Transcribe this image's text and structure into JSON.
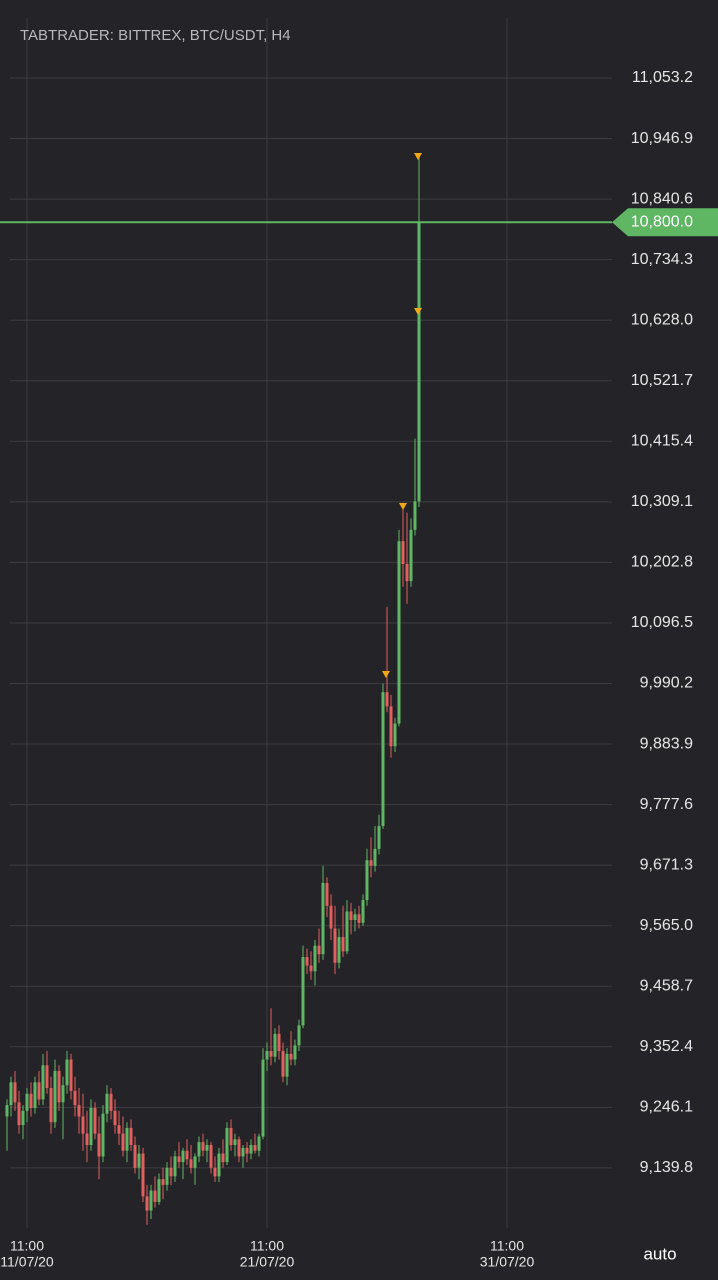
{
  "chart_data": {
    "type": "candlestick",
    "title": "TABTRADER: BITTREX, BTC/USDT, H4",
    "scale_mode": "auto",
    "up_color": "#5fb663",
    "down_color": "#e0615f",
    "grid": true,
    "x": [
      "10/07/20 15:00",
      "10/07/20 19:00",
      "10/07/20 23:00",
      "11/07/20 03:00",
      "11/07/20 07:00",
      "11/07/20 11:00",
      "11/07/20 15:00",
      "11/07/20 19:00",
      "11/07/20 23:00",
      "12/07/20 03:00",
      "12/07/20 07:00",
      "12/07/20 11:00",
      "12/07/20 15:00",
      "12/07/20 19:00",
      "12/07/20 23:00",
      "13/07/20 03:00",
      "13/07/20 07:00",
      "13/07/20 11:00",
      "13/07/20 15:00",
      "13/07/20 19:00",
      "13/07/20 23:00",
      "14/07/20 03:00",
      "14/07/20 07:00",
      "14/07/20 11:00",
      "14/07/20 15:00",
      "14/07/20 19:00",
      "14/07/20 23:00",
      "15/07/20 03:00",
      "15/07/20 07:00",
      "15/07/20 11:00",
      "15/07/20 15:00",
      "15/07/20 19:00",
      "15/07/20 23:00",
      "16/07/20 03:00",
      "16/07/20 07:00",
      "16/07/20 11:00",
      "16/07/20 15:00",
      "16/07/20 19:00",
      "16/07/20 23:00",
      "17/07/20 03:00",
      "17/07/20 07:00",
      "17/07/20 11:00",
      "17/07/20 15:00",
      "17/07/20 19:00",
      "17/07/20 23:00",
      "18/07/20 03:00",
      "18/07/20 07:00",
      "18/07/20 11:00",
      "18/07/20 15:00",
      "18/07/20 19:00",
      "18/07/20 23:00",
      "19/07/20 03:00",
      "19/07/20 07:00",
      "19/07/20 11:00",
      "19/07/20 15:00",
      "19/07/20 19:00",
      "19/07/20 23:00",
      "20/07/20 03:00",
      "20/07/20 07:00",
      "20/07/20 11:00",
      "20/07/20 15:00",
      "20/07/20 19:00",
      "20/07/20 23:00",
      "21/07/20 03:00",
      "21/07/20 07:00",
      "21/07/20 11:00",
      "21/07/20 15:00",
      "21/07/20 19:00",
      "21/07/20 23:00",
      "22/07/20 03:00",
      "22/07/20 07:00",
      "22/07/20 11:00",
      "22/07/20 15:00",
      "22/07/20 19:00",
      "22/07/20 23:00",
      "23/07/20 03:00",
      "23/07/20 07:00",
      "23/07/20 11:00",
      "23/07/20 15:00",
      "23/07/20 19:00",
      "23/07/20 23:00",
      "24/07/20 03:00",
      "24/07/20 07:00",
      "24/07/20 11:00",
      "24/07/20 15:00",
      "24/07/20 19:00",
      "24/07/20 23:00",
      "25/07/20 03:00",
      "25/07/20 07:00",
      "25/07/20 11:00",
      "25/07/20 15:00",
      "25/07/20 19:00",
      "25/07/20 23:00",
      "26/07/20 03:00",
      "26/07/20 07:00",
      "26/07/20 11:00",
      "26/07/20 15:00",
      "26/07/20 19:00",
      "26/07/20 23:00",
      "27/07/20 03:00",
      "27/07/20 07:00",
      "27/07/20 11:00",
      "27/07/20 15:00",
      "27/07/20 19:00"
    ],
    "open": [
      9230,
      9250,
      9290,
      9255,
      9215,
      9240,
      9270,
      9245,
      9290,
      9260,
      9320,
      9280,
      9220,
      9310,
      9255,
      9285,
      9330,
      9275,
      9250,
      9230,
      9200,
      9180,
      9245,
      9200,
      9160,
      9235,
      9270,
      9240,
      9215,
      9200,
      9170,
      9210,
      9180,
      9140,
      9165,
      9090,
      9065,
      9100,
      9080,
      9120,
      9110,
      9140,
      9125,
      9160,
      9150,
      9170,
      9155,
      9140,
      9160,
      9185,
      9170,
      9180,
      9140,
      9125,
      9165,
      9150,
      9210,
      9180,
      9190,
      9160,
      9175,
      9165,
      9180,
      9170,
      9195,
      9330,
      9345,
      9335,
      9375,
      9345,
      9300,
      9340,
      9330,
      9355,
      9390,
      9510,
      9495,
      9485,
      9530,
      9515,
      9640,
      9600,
      9560,
      9500,
      9545,
      9520,
      9590,
      9575,
      9585,
      9570,
      9610,
      9680,
      9670,
      9700,
      9740,
      9975,
      9950,
      9880,
      9920,
      10240,
      10200,
      10170,
      10260,
      10310
    ],
    "high": [
      9260,
      9300,
      9310,
      9275,
      9250,
      9280,
      9290,
      9300,
      9310,
      9340,
      9345,
      9300,
      9330,
      9320,
      9300,
      9345,
      9340,
      9300,
      9280,
      9270,
      9240,
      9260,
      9255,
      9230,
      9250,
      9285,
      9280,
      9260,
      9240,
      9230,
      9220,
      9225,
      9195,
      9180,
      9175,
      9110,
      9110,
      9125,
      9130,
      9140,
      9150,
      9160,
      9170,
      9185,
      9175,
      9190,
      9180,
      9165,
      9195,
      9200,
      9190,
      9185,
      9160,
      9175,
      9190,
      9220,
      9225,
      9200,
      9195,
      9180,
      9185,
      9190,
      9200,
      9200,
      9350,
      9360,
      9420,
      9385,
      9390,
      9360,
      9350,
      9380,
      9365,
      9400,
      9530,
      9525,
      9520,
      9540,
      9560,
      9670,
      9650,
      9620,
      9600,
      9560,
      9600,
      9610,
      9605,
      9595,
      9600,
      9620,
      9700,
      9720,
      9740,
      9760,
      9990,
      10125,
      9970,
      9930,
      10260,
      10300,
      10290,
      10280,
      10420,
      10915
    ],
    "low": [
      9170,
      9230,
      9240,
      9200,
      9190,
      9220,
      9230,
      9235,
      9250,
      9250,
      9270,
      9200,
      9210,
      9240,
      9190,
      9270,
      9260,
      9230,
      9200,
      9170,
      9150,
      9170,
      9190,
      9120,
      9150,
      9220,
      9225,
      9200,
      9180,
      9160,
      9150,
      9170,
      9130,
      9120,
      9080,
      9040,
      9050,
      9070,
      9075,
      9085,
      9100,
      9110,
      9115,
      9140,
      9120,
      9145,
      9130,
      9110,
      9150,
      9160,
      9150,
      9130,
      9115,
      9115,
      9140,
      9145,
      9170,
      9160,
      9150,
      9140,
      9150,
      9155,
      9165,
      9160,
      9190,
      9310,
      9320,
      9325,
      9330,
      9290,
      9285,
      9320,
      9320,
      9345,
      9385,
      9480,
      9470,
      9460,
      9500,
      9505,
      9580,
      9540,
      9480,
      9490,
      9510,
      9515,
      9550,
      9555,
      9560,
      9565,
      9600,
      9650,
      9660,
      9690,
      9735,
      9940,
      9860,
      9870,
      9915,
      10160,
      10130,
      10160,
      10250,
      10300
    ],
    "close": [
      9250,
      9290,
      9255,
      9215,
      9240,
      9270,
      9245,
      9290,
      9260,
      9320,
      9280,
      9220,
      9310,
      9255,
      9285,
      9330,
      9275,
      9250,
      9230,
      9200,
      9180,
      9245,
      9200,
      9160,
      9235,
      9270,
      9240,
      9215,
      9200,
      9170,
      9210,
      9180,
      9140,
      9165,
      9090,
      9065,
      9100,
      9080,
      9120,
      9110,
      9140,
      9125,
      9160,
      9150,
      9170,
      9155,
      9140,
      9160,
      9185,
      9170,
      9180,
      9140,
      9125,
      9165,
      9150,
      9210,
      9180,
      9190,
      9160,
      9175,
      9165,
      9180,
      9170,
      9195,
      9330,
      9345,
      9335,
      9375,
      9345,
      9300,
      9340,
      9330,
      9355,
      9390,
      9510,
      9495,
      9485,
      9530,
      9515,
      9640,
      9600,
      9560,
      9500,
      9545,
      9520,
      9590,
      9575,
      9585,
      9570,
      9610,
      9680,
      9670,
      9700,
      9740,
      9975,
      9950,
      9880,
      9920,
      10240,
      10200,
      10170,
      10260,
      10310,
      10800
    ],
    "last_price": {
      "value": 10800,
      "label": "10,800.0"
    },
    "xlim": [
      "10/07/20 08:00",
      "04/08/20 20:00"
    ],
    "xticks": [
      {
        "value": "11/07/20 11:00",
        "label": [
          "11:00",
          "11/07/20"
        ]
      },
      {
        "value": "21/07/20 11:00",
        "label": [
          "11:00",
          "21/07/20"
        ]
      },
      {
        "value": "31/07/20 11:00",
        "label": [
          "11:00",
          "31/07/20"
        ]
      }
    ],
    "ylim": [
      9034.3,
      11084.8
    ],
    "yticks": [
      {
        "value": 11053.2,
        "label": "11,053.2"
      },
      {
        "value": 10946.9,
        "label": "10,946.9"
      },
      {
        "value": 10840.6,
        "label": "10,840.6"
      },
      {
        "value": 10734.3,
        "label": "10,734.3"
      },
      {
        "value": 10628.0,
        "label": "10,628.0"
      },
      {
        "value": 10521.7,
        "label": "10,521.7"
      },
      {
        "value": 10415.4,
        "label": "10,415.4"
      },
      {
        "value": 10309.1,
        "label": "10,309.1"
      },
      {
        "value": 10202.8,
        "label": "10,202.8"
      },
      {
        "value": 10096.5,
        "label": "10,096.5"
      },
      {
        "value": 9990.2,
        "label": "9,990.2"
      },
      {
        "value": 9883.9,
        "label": "9,883.9"
      },
      {
        "value": 9777.6,
        "label": "9,777.6"
      },
      {
        "value": 9671.3,
        "label": "9,671.3"
      },
      {
        "value": 9565.0,
        "label": "9,565.0"
      },
      {
        "value": 9458.7,
        "label": "9,458.7"
      },
      {
        "value": 9352.4,
        "label": "9,352.4"
      },
      {
        "value": 9246.1,
        "label": "9,246.1"
      },
      {
        "value": 9139.8,
        "label": "9,139.8"
      }
    ]
  }
}
